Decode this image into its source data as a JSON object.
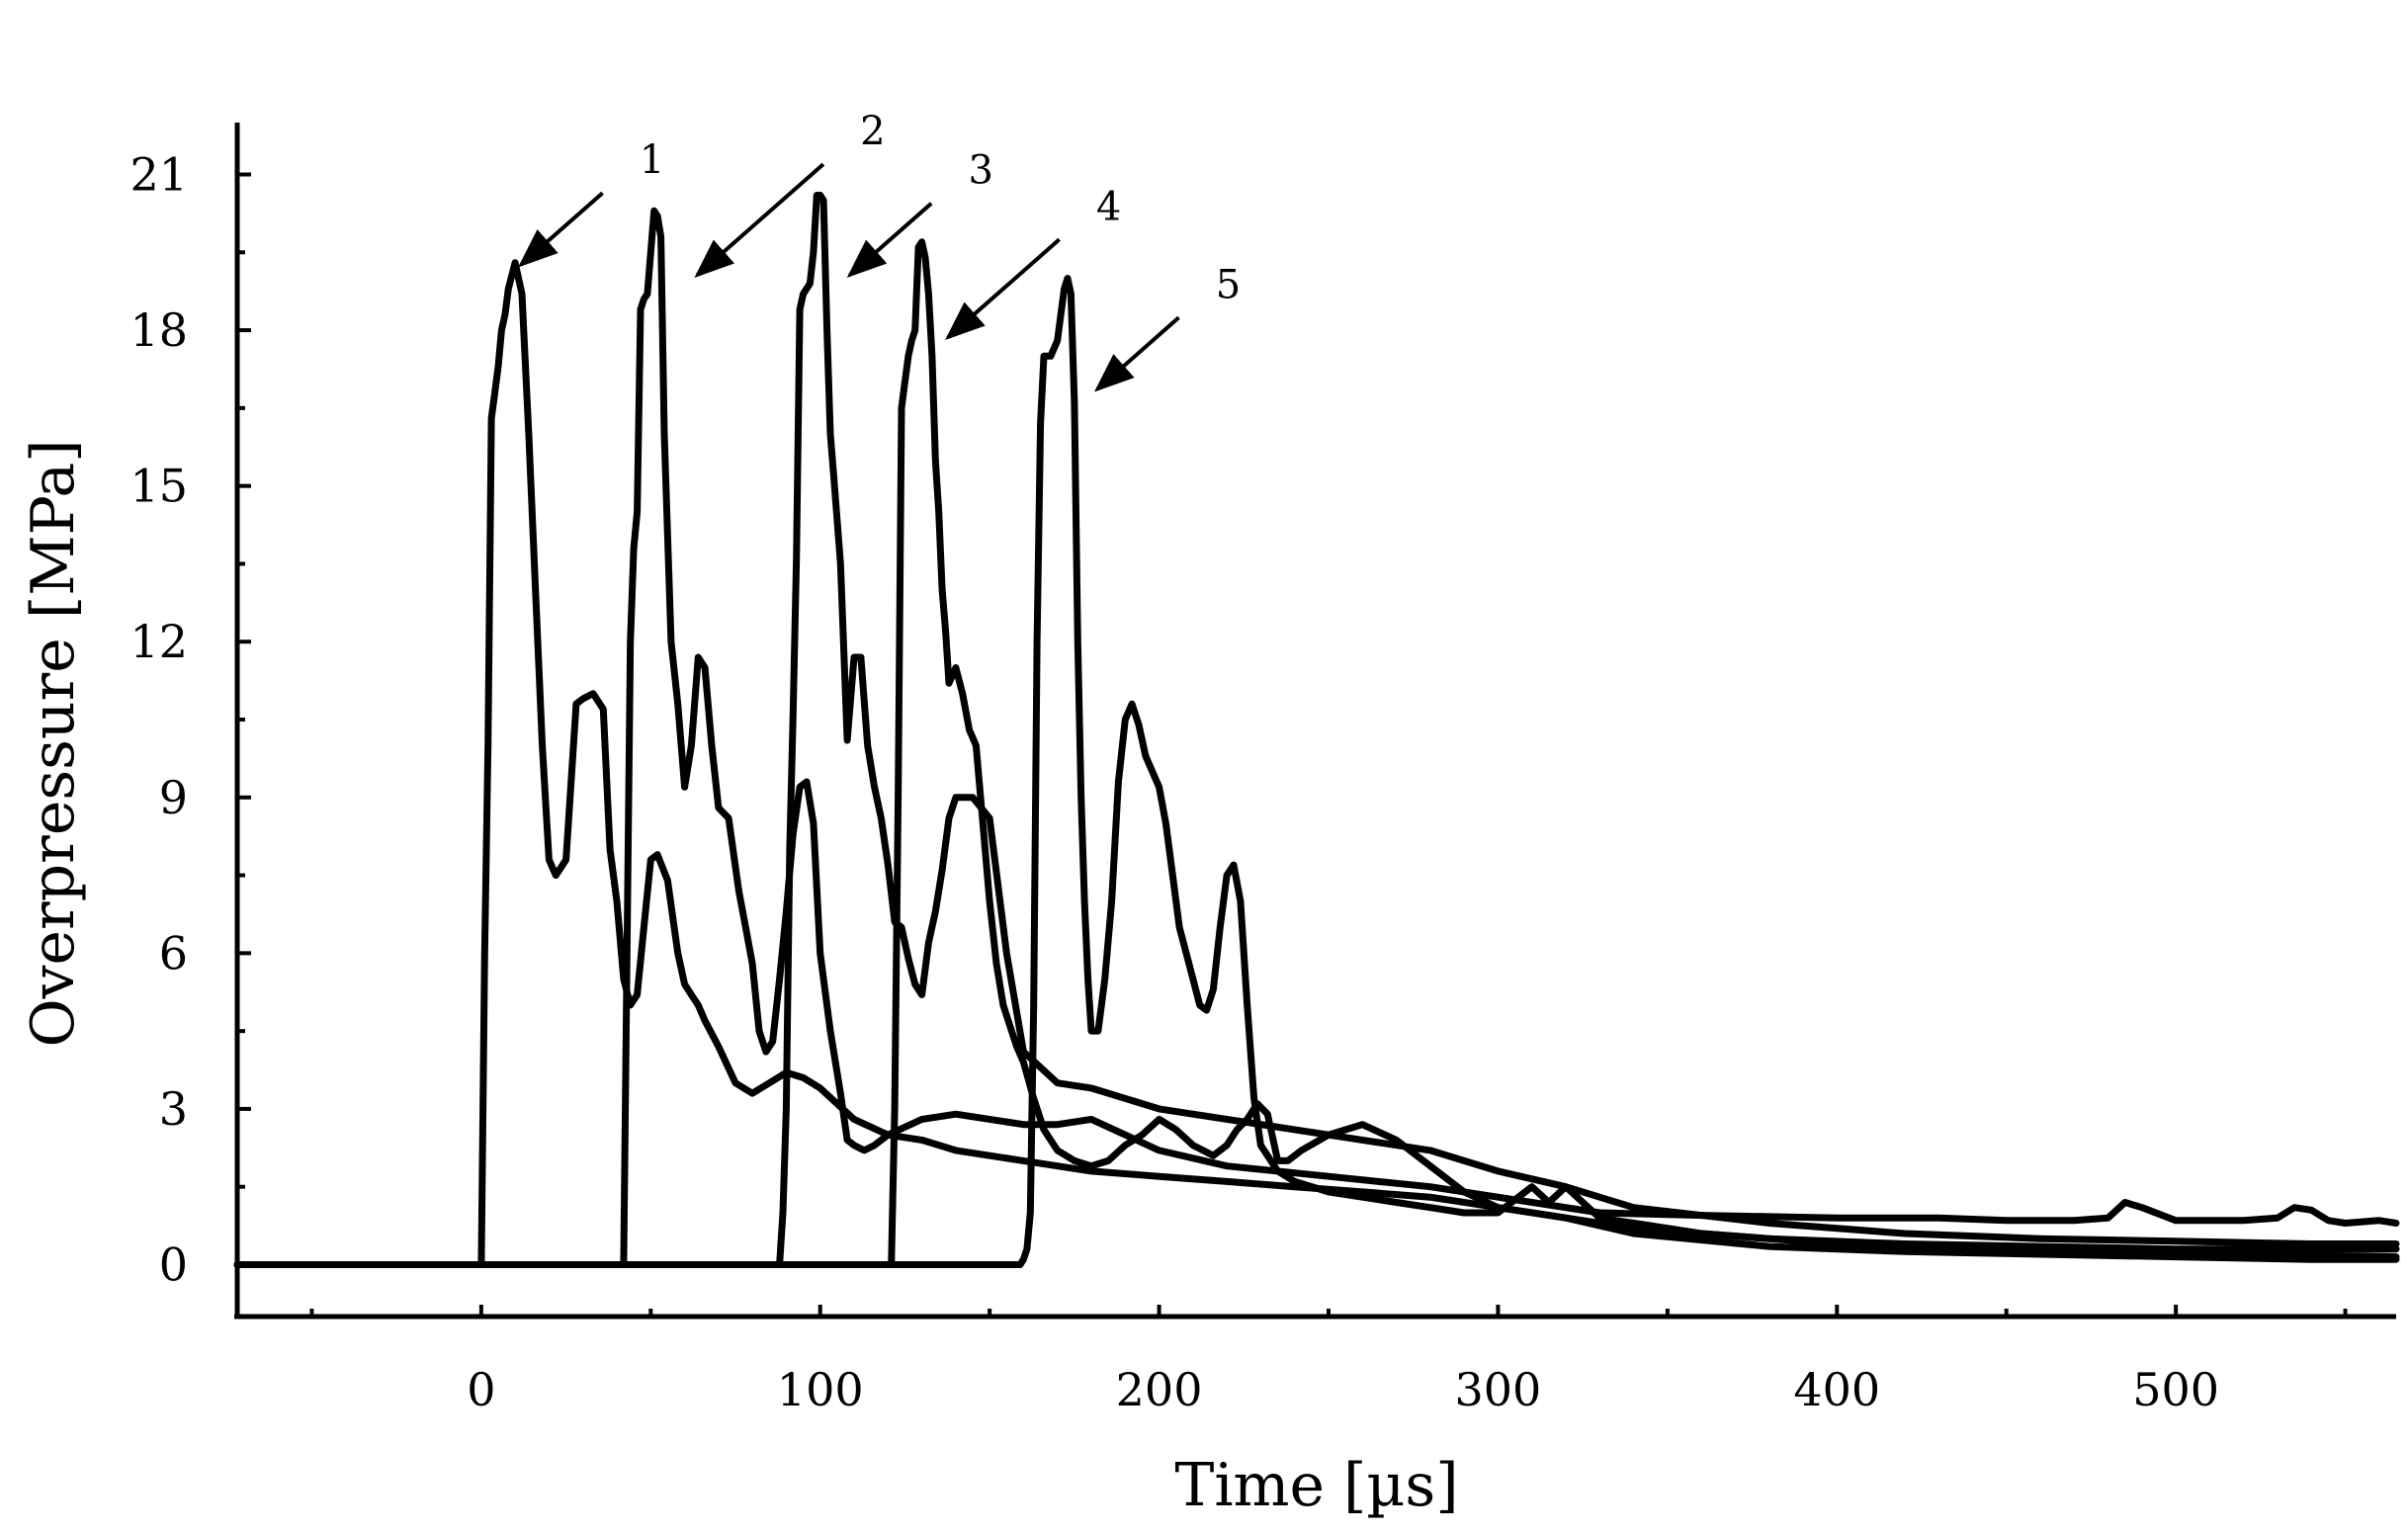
{
  "chart_data": {
    "type": "line",
    "title": "",
    "xlabel": "Time [µs]",
    "ylabel": "Overpressure [MPa]",
    "xlim": [
      -72,
      565
    ],
    "ylim": [
      -1,
      22
    ],
    "xticks": [
      0,
      100,
      200,
      300,
      400,
      500
    ],
    "yticks": [
      0,
      3,
      6,
      9,
      12,
      15,
      18,
      21
    ],
    "grid": false,
    "colors": {
      "line": "#000000",
      "background": "#ffffff"
    },
    "series": [
      {
        "name": "1",
        "x": [
          -72,
          0,
          1,
          2,
          3,
          4,
          5,
          6,
          7,
          8,
          10,
          12,
          14,
          16,
          18,
          20,
          22,
          25,
          28,
          30,
          33,
          36,
          38,
          40,
          42,
          44,
          46,
          48,
          50,
          52,
          55,
          58,
          60,
          62,
          64,
          66,
          70,
          75,
          80,
          85,
          90,
          95,
          100,
          110,
          120,
          130,
          140,
          150,
          160,
          170,
          180,
          200,
          220,
          250,
          280,
          300,
          330,
          360,
          400,
          430,
          450,
          470,
          480,
          485,
          490,
          500,
          520,
          530,
          535,
          540,
          545,
          550,
          560,
          565
        ],
        "y": [
          0,
          0,
          6,
          10,
          16.3,
          16.8,
          17.3,
          18,
          18.3,
          18.8,
          19.3,
          18.7,
          16,
          13,
          10,
          7.8,
          7.5,
          7.8,
          10.8,
          10.9,
          11,
          10.7,
          8,
          7,
          5.5,
          5,
          5.2,
          6.5,
          7.8,
          7.9,
          7.4,
          6,
          5.4,
          5.2,
          5,
          4.7,
          4.2,
          3.5,
          3.3,
          3.5,
          3.7,
          3.6,
          3.4,
          2.8,
          2.5,
          2.8,
          2.9,
          2.8,
          2.7,
          2.7,
          2.8,
          2.2,
          1.9,
          1.7,
          1.5,
          1.3,
          1.0,
          0.95,
          0.9,
          0.9,
          0.85,
          0.85,
          0.9,
          1.2,
          1.1,
          0.85,
          0.85,
          0.9,
          1.1,
          1.05,
          0.85,
          0.8,
          0.85,
          0.8
        ]
      },
      {
        "name": "2",
        "x": [
          -72,
          42,
          43,
          44,
          45,
          46,
          47,
          48,
          49,
          50,
          51,
          52,
          53,
          54,
          56,
          58,
          60,
          62,
          64,
          66,
          68,
          70,
          73,
          76,
          78,
          80,
          82,
          84,
          86,
          88,
          90,
          92,
          94,
          96,
          98,
          100,
          103,
          106,
          108,
          110,
          113,
          116,
          120,
          130,
          140,
          150,
          160,
          170,
          180,
          200,
          220,
          240,
          260,
          280,
          300,
          320,
          340,
          380,
          420,
          460,
          500,
          540,
          565
        ],
        "y": [
          0,
          0,
          6,
          12,
          13.8,
          14.5,
          18.4,
          18.6,
          18.7,
          19.5,
          20.3,
          20.2,
          19.8,
          16,
          12,
          10.8,
          9.2,
          10,
          11.7,
          11.5,
          10,
          8.8,
          8.6,
          7.2,
          6.5,
          5.8,
          4.5,
          4.1,
          4.3,
          5.5,
          6.8,
          8.3,
          9.2,
          9.3,
          8.5,
          6,
          4.5,
          3.3,
          2.4,
          2.3,
          2.2,
          2.3,
          2.5,
          2.4,
          2.2,
          2.1,
          2.0,
          1.9,
          1.8,
          1.7,
          1.6,
          1.5,
          1.4,
          1.3,
          1.1,
          0.9,
          0.7,
          0.5,
          0.4,
          0.35,
          0.3,
          0.3,
          0.3
        ]
      },
      {
        "name": "3",
        "x": [
          -72,
          88,
          89,
          90,
          91,
          92,
          93,
          94,
          95,
          96,
          97,
          98,
          99,
          100,
          101,
          102,
          103,
          104,
          106,
          108,
          110,
          112,
          114,
          116,
          118,
          120,
          122,
          124,
          126,
          128,
          130,
          132,
          134,
          136,
          138,
          140,
          145,
          150,
          155,
          160,
          170,
          180,
          200,
          220,
          240,
          260,
          280,
          300,
          320,
          340,
          380,
          420,
          460,
          500,
          540,
          565
        ],
        "y": [
          0,
          0,
          1,
          3,
          8,
          10.6,
          13.6,
          18.4,
          18.7,
          18.8,
          18.9,
          19.5,
          20.6,
          20.6,
          20.5,
          18,
          16,
          15.2,
          13.5,
          10.1,
          11.7,
          11.7,
          10,
          9.2,
          8.6,
          7.7,
          6.6,
          6.5,
          5.9,
          5.4,
          5.2,
          6.2,
          6.8,
          7.6,
          8.6,
          9,
          9,
          8.6,
          6,
          4.1,
          3.5,
          3.4,
          3.0,
          2.8,
          2.6,
          2.4,
          2.2,
          1.8,
          1.5,
          1.1,
          0.8,
          0.6,
          0.5,
          0.45,
          0.4,
          0.4
        ]
      },
      {
        "name": "4",
        "x": [
          -72,
          121,
          122,
          123,
          124,
          125,
          126,
          127,
          128,
          129,
          130,
          131,
          132,
          133,
          134,
          135,
          136,
          137,
          138,
          140,
          142,
          144,
          146,
          148,
          150,
          152,
          154,
          156,
          158,
          160,
          163,
          166,
          170,
          175,
          180,
          185,
          190,
          195,
          200,
          205,
          210,
          213,
          216,
          218,
          220,
          223,
          226,
          229,
          232,
          235,
          238,
          242,
          250,
          260,
          270,
          280,
          290,
          300,
          320,
          340,
          380,
          420,
          460,
          500,
          540,
          565
        ],
        "y": [
          0,
          0,
          3,
          9,
          16.5,
          17,
          17.5,
          17.8,
          18,
          19.6,
          19.7,
          19.4,
          18.7,
          17.5,
          15.5,
          14.5,
          13,
          12.2,
          11.2,
          11.5,
          11,
          10.3,
          10,
          8.5,
          7,
          5.8,
          5,
          4.6,
          4.2,
          3.9,
          3.2,
          2.6,
          2.2,
          2,
          1.9,
          2,
          2.3,
          2.5,
          2.8,
          2.6,
          2.3,
          2.2,
          2.1,
          2.2,
          2.3,
          2.6,
          2.8,
          3.1,
          2.9,
          2.0,
          2.0,
          2.2,
          2.5,
          2.7,
          2.4,
          1.9,
          1.4,
          1.1,
          0.9,
          0.6,
          0.35,
          0.25,
          0.2,
          0.15,
          0.1,
          0.1
        ]
      },
      {
        "name": "5",
        "x": [
          -72,
          159,
          160,
          161,
          162,
          163,
          164,
          165,
          166,
          168,
          170,
          172,
          173,
          174,
          175,
          176,
          177,
          178,
          179,
          180,
          182,
          184,
          186,
          188,
          190,
          192,
          194,
          196,
          198,
          200,
          202,
          204,
          206,
          208,
          210,
          212,
          214,
          216,
          218,
          220,
          222,
          224,
          226,
          228,
          230,
          235,
          240,
          250,
          260,
          270,
          280,
          290,
          300,
          310,
          315,
          320,
          330,
          360,
          400,
          440,
          480,
          520,
          565
        ],
        "y": [
          0,
          0,
          0.1,
          0.3,
          1,
          5,
          12,
          16.2,
          17.5,
          17.5,
          17.8,
          18.8,
          19,
          18.7,
          16.6,
          12,
          9,
          7,
          5.5,
          4.5,
          4.5,
          5.5,
          7,
          9.3,
          10.5,
          10.8,
          10.4,
          9.8,
          9.5,
          9.2,
          8.5,
          7.5,
          6.5,
          6,
          5.5,
          5,
          4.9,
          5.3,
          6.5,
          7.5,
          7.7,
          7,
          5,
          3.2,
          2.3,
          1.8,
          1.6,
          1.4,
          1.3,
          1.2,
          1.1,
          1.0,
          1.0,
          1.5,
          1.2,
          1.5,
          0.9,
          0.6,
          0.4,
          0.3,
          0.25,
          0.2,
          0.15
        ]
      }
    ],
    "annotations": [
      {
        "label": "1",
        "target_x": 10,
        "target_y": 19.3
      },
      {
        "label": "2",
        "target_x": 62,
        "target_y": 19.1
      },
      {
        "label": "3",
        "target_x": 107,
        "target_y": 19.1
      },
      {
        "label": "4",
        "target_x": 136,
        "target_y": 17.9
      },
      {
        "label": "5",
        "target_x": 180,
        "target_y": 16.9
      }
    ]
  }
}
